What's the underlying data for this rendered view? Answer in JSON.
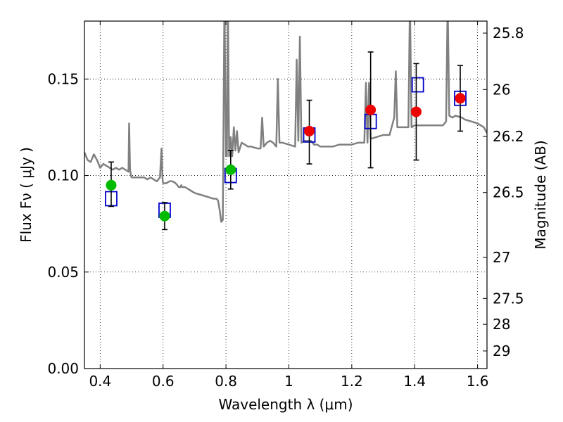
{
  "chart_data": {
    "type": "scatter",
    "xlabel": "Wavelength  λ (μm)",
    "ylabel": "Flux  Fν  ( μJy )",
    "ylabel_right": "Magnitude (AB)",
    "xlim": [
      0.35,
      1.63
    ],
    "ylim": [
      0.0,
      0.18
    ],
    "grid": true,
    "x_ticks": [
      {
        "value": 0.4,
        "label": "0.4"
      },
      {
        "value": 0.6,
        "label": "0.6"
      },
      {
        "value": 0.8,
        "label": "0.8"
      },
      {
        "value": 1.0,
        "label": "1"
      },
      {
        "value": 1.2,
        "label": "1.2"
      },
      {
        "value": 1.4,
        "label": "1.4"
      },
      {
        "value": 1.6,
        "label": "1.6"
      }
    ],
    "y_ticks": [
      {
        "value": 0.0,
        "label": "0.00"
      },
      {
        "value": 0.05,
        "label": "0.05"
      },
      {
        "value": 0.1,
        "label": "0.10"
      },
      {
        "value": 0.15,
        "label": "0.15"
      }
    ],
    "magnitude_ticks": [
      {
        "value": 25.8,
        "label": "25.8"
      },
      {
        "value": 26.0,
        "label": "26"
      },
      {
        "value": 26.2,
        "label": "26.2"
      },
      {
        "value": 26.5,
        "label": "26.5"
      },
      {
        "value": 27.0,
        "label": "27"
      },
      {
        "value": 27.5,
        "label": "27.5"
      },
      {
        "value": 28.0,
        "label": "28"
      },
      {
        "value": 29.0,
        "label": "29"
      }
    ],
    "model_spectrum": {
      "color": "#808080",
      "x": [
        0.35,
        0.36,
        0.37,
        0.38,
        0.39,
        0.4,
        0.41,
        0.42,
        0.43,
        0.44,
        0.45,
        0.46,
        0.47,
        0.48,
        0.49,
        0.492,
        0.495,
        0.498,
        0.5,
        0.51,
        0.52,
        0.53,
        0.54,
        0.55,
        0.56,
        0.57,
        0.58,
        0.59,
        0.595,
        0.598,
        0.6,
        0.61,
        0.62,
        0.63,
        0.64,
        0.65,
        0.655,
        0.658,
        0.66,
        0.67,
        0.68,
        0.69,
        0.7,
        0.72,
        0.74,
        0.76,
        0.77,
        0.775,
        0.78,
        0.785,
        0.79,
        0.795,
        0.8,
        0.803,
        0.806,
        0.81,
        0.815,
        0.82,
        0.825,
        0.83,
        0.835,
        0.84,
        0.85,
        0.86,
        0.87,
        0.88,
        0.9,
        0.91,
        0.915,
        0.92,
        0.93,
        0.94,
        0.95,
        0.96,
        0.965,
        0.97,
        0.98,
        1.0,
        1.02,
        1.025,
        1.03,
        1.035,
        1.04,
        1.05,
        1.06,
        1.07,
        1.08,
        1.09,
        1.1,
        1.12,
        1.14,
        1.16,
        1.18,
        1.2,
        1.22,
        1.24,
        1.245,
        1.25,
        1.255,
        1.26,
        1.28,
        1.3,
        1.32,
        1.335,
        1.34,
        1.345,
        1.35,
        1.37,
        1.38,
        1.385,
        1.39,
        1.4,
        1.41,
        1.42,
        1.43,
        1.44,
        1.45,
        1.46,
        1.47,
        1.48,
        1.49,
        1.5,
        1.505,
        1.51,
        1.52,
        1.53,
        1.55,
        1.56,
        1.58,
        1.6,
        1.62,
        1.63
      ],
      "y": [
        0.112,
        0.108,
        0.107,
        0.111,
        0.108,
        0.104,
        0.106,
        0.105,
        0.104,
        0.103,
        0.104,
        0.103,
        0.104,
        0.103,
        0.102,
        0.127,
        0.103,
        0.1,
        0.099,
        0.099,
        0.099,
        0.099,
        0.099,
        0.098,
        0.099,
        0.098,
        0.097,
        0.099,
        0.114,
        0.099,
        0.096,
        0.096,
        0.097,
        0.097,
        0.096,
        0.094,
        0.094,
        0.095,
        0.094,
        0.094,
        0.093,
        0.092,
        0.091,
        0.09,
        0.089,
        0.088,
        0.088,
        0.087,
        0.082,
        0.076,
        0.077,
        0.19,
        0.11,
        0.11,
        0.19,
        0.11,
        0.12,
        0.11,
        0.125,
        0.113,
        0.123,
        0.112,
        0.117,
        0.116,
        0.115,
        0.115,
        0.114,
        0.114,
        0.13,
        0.115,
        0.117,
        0.118,
        0.117,
        0.115,
        0.15,
        0.117,
        0.117,
        0.116,
        0.115,
        0.16,
        0.118,
        0.172,
        0.117,
        0.118,
        0.118,
        0.118,
        0.116,
        0.116,
        0.115,
        0.115,
        0.115,
        0.116,
        0.116,
        0.116,
        0.117,
        0.117,
        0.148,
        0.117,
        0.148,
        0.119,
        0.12,
        0.121,
        0.121,
        0.13,
        0.154,
        0.125,
        0.125,
        0.125,
        0.125,
        0.19,
        0.125,
        0.126,
        0.126,
        0.126,
        0.126,
        0.126,
        0.126,
        0.126,
        0.126,
        0.126,
        0.126,
        0.128,
        0.19,
        0.131,
        0.13,
        0.131,
        0.13,
        0.129,
        0.128,
        0.127,
        0.125,
        0.122
      ],
      "y_clip": 0.18
    },
    "series": [
      {
        "name": "",
        "marker": "open-square",
        "color": "#0000cc",
        "x": [
          0.435,
          0.605,
          0.815,
          1.065,
          1.26,
          1.41,
          1.545
        ],
        "y": [
          0.088,
          0.082,
          0.1,
          0.121,
          0.128,
          0.147,
          0.14
        ]
      },
      {
        "name": "",
        "marker": "filled-circle",
        "color": "#00bb00",
        "x": [
          0.435,
          0.605,
          0.815
        ],
        "y": [
          0.095,
          0.079,
          0.103
        ],
        "err_low": [
          0.084,
          0.072,
          0.093
        ],
        "err_high": [
          0.107,
          0.086,
          0.113
        ]
      },
      {
        "name": "",
        "marker": "filled-circle",
        "color": "#ee0000",
        "x": [
          1.065,
          1.26,
          1.405,
          1.545
        ],
        "y": [
          0.123,
          0.134,
          0.133,
          0.14
        ],
        "err_low": [
          0.106,
          0.104,
          0.108,
          0.123
        ],
        "err_high": [
          0.139,
          0.164,
          0.158,
          0.157
        ]
      }
    ]
  }
}
